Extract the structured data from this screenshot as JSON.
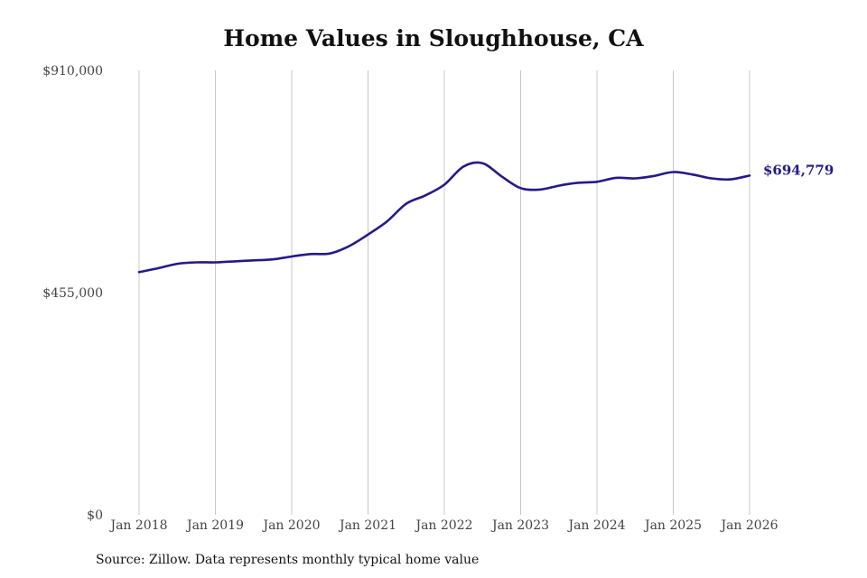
{
  "chart_data": {
    "type": "line",
    "title": "Home Values in Sloughhouse, CA",
    "xlabel": "",
    "ylabel": "",
    "ylim": [
      0,
      910000
    ],
    "yticks": [
      {
        "value": 0,
        "label": "$0"
      },
      {
        "value": 455000,
        "label": "$455,000"
      },
      {
        "value": 910000,
        "label": "$910,000"
      }
    ],
    "xticks": [
      "Jan 2018",
      "Jan 2019",
      "Jan 2020",
      "Jan 2021",
      "Jan 2022",
      "Jan 2023",
      "Jan 2024",
      "Jan 2025",
      "Jan 2026"
    ],
    "grid": "vertical",
    "series": [
      {
        "color": "#241a87",
        "points": [
          {
            "x": "2018-01",
            "y": 497000
          },
          {
            "x": "2018-04",
            "y": 505000
          },
          {
            "x": "2018-07",
            "y": 514000
          },
          {
            "x": "2018-10",
            "y": 517000
          },
          {
            "x": "2019-01",
            "y": 517000
          },
          {
            "x": "2019-04",
            "y": 519000
          },
          {
            "x": "2019-07",
            "y": 521000
          },
          {
            "x": "2019-10",
            "y": 523000
          },
          {
            "x": "2020-01",
            "y": 529000
          },
          {
            "x": "2020-04",
            "y": 534000
          },
          {
            "x": "2020-07",
            "y": 535000
          },
          {
            "x": "2020-10",
            "y": 550000
          },
          {
            "x": "2021-01",
            "y": 574000
          },
          {
            "x": "2021-04",
            "y": 601000
          },
          {
            "x": "2021-07",
            "y": 637000
          },
          {
            "x": "2021-10",
            "y": 654000
          },
          {
            "x": "2022-01",
            "y": 676000
          },
          {
            "x": "2022-04",
            "y": 713000
          },
          {
            "x": "2022-07",
            "y": 720000
          },
          {
            "x": "2022-10",
            "y": 693000
          },
          {
            "x": "2023-01",
            "y": 669000
          },
          {
            "x": "2023-04",
            "y": 666000
          },
          {
            "x": "2023-07",
            "y": 674000
          },
          {
            "x": "2023-10",
            "y": 680000
          },
          {
            "x": "2024-01",
            "y": 682000
          },
          {
            "x": "2024-04",
            "y": 690000
          },
          {
            "x": "2024-07",
            "y": 689000
          },
          {
            "x": "2024-10",
            "y": 694000
          },
          {
            "x": "2025-01",
            "y": 702000
          },
          {
            "x": "2025-04",
            "y": 697000
          },
          {
            "x": "2025-07",
            "y": 689000
          },
          {
            "x": "2025-10",
            "y": 687000
          },
          {
            "x": "2026-01",
            "y": 694779
          }
        ]
      }
    ],
    "end_label": "$694,779",
    "source": "Source: Zillow. Data represents monthly typical home value"
  }
}
